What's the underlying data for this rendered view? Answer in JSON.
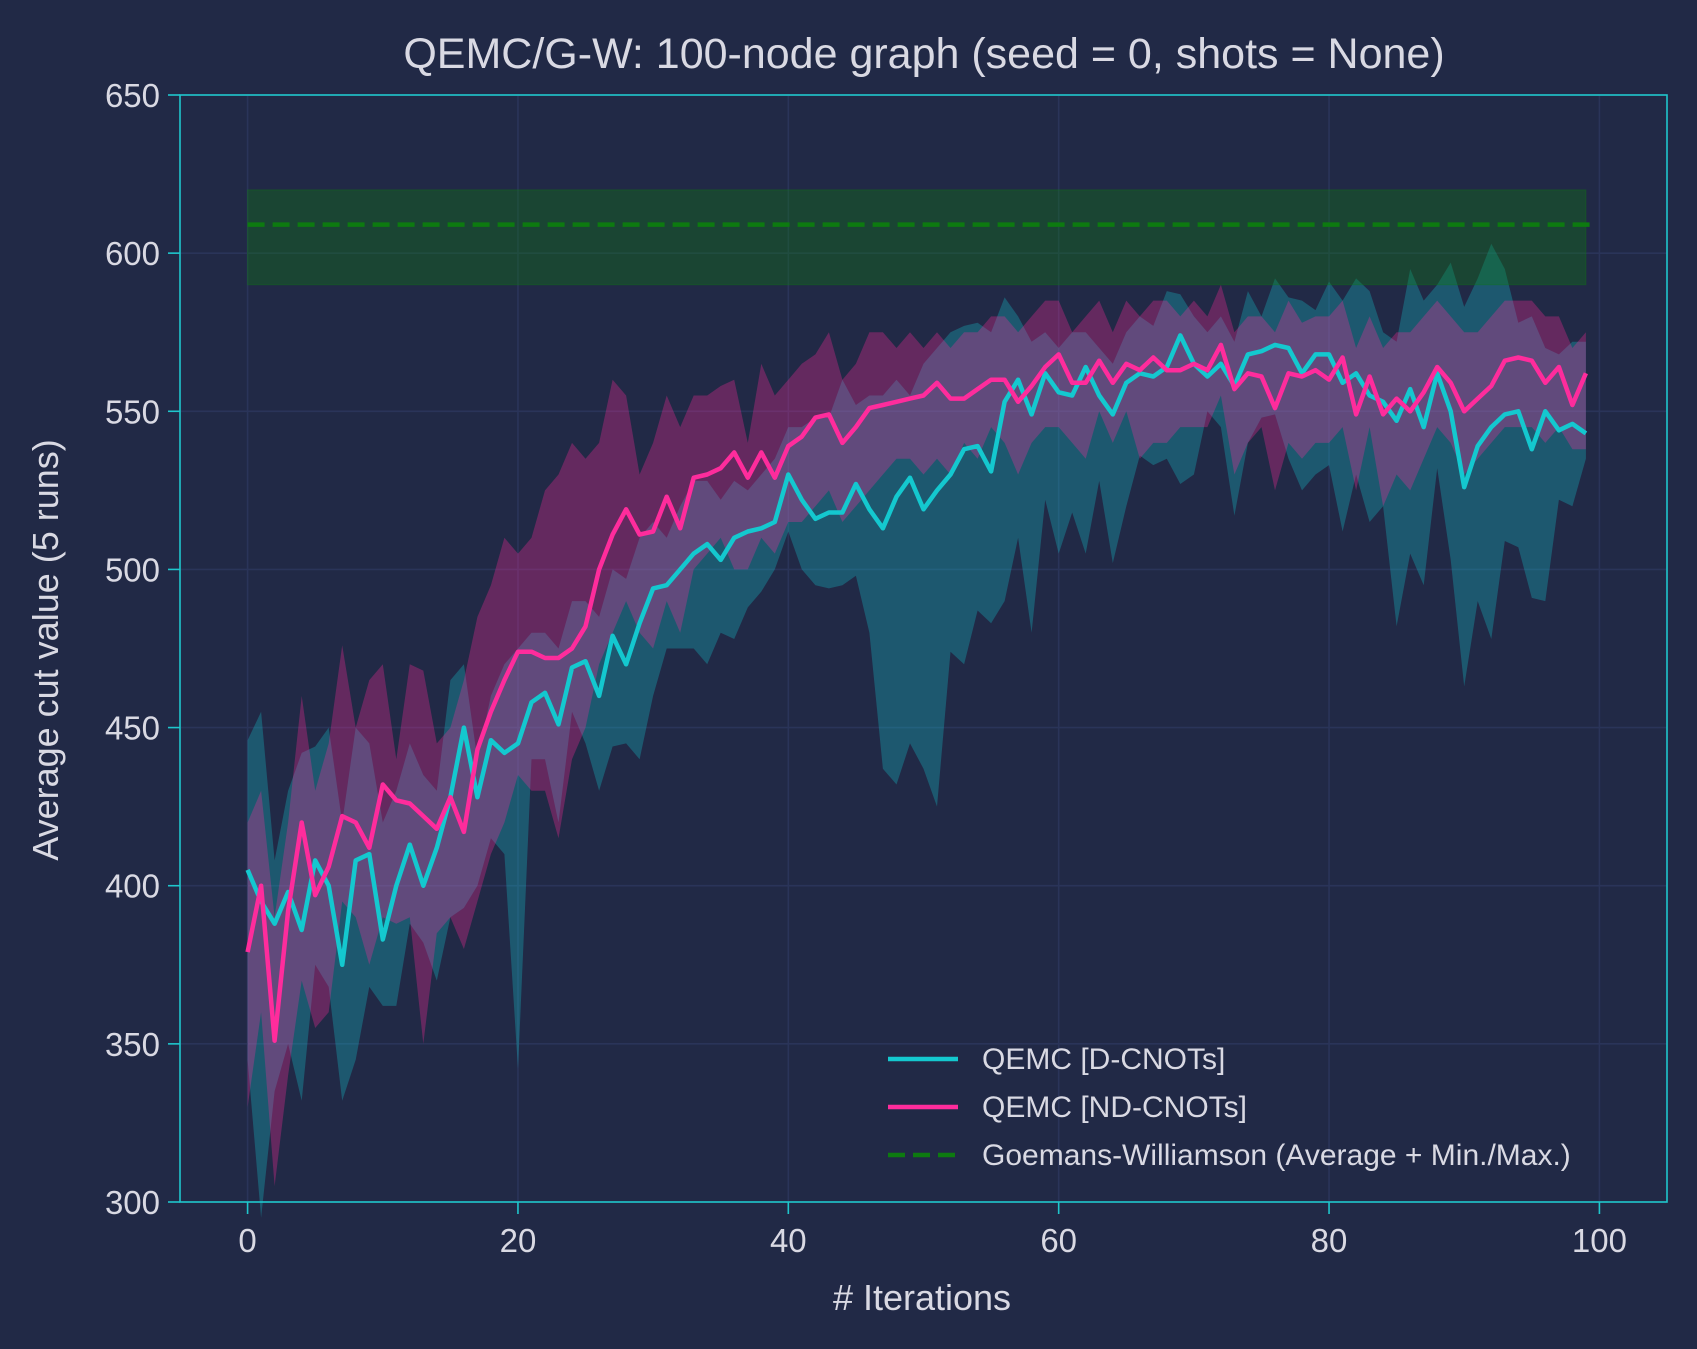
{
  "chart_data": {
    "type": "line",
    "title": "QEMC/G-W: 100-node graph (seed = 0, shots = None)",
    "xlabel": "# Iterations",
    "ylabel": "Average cut value (5 runs)",
    "xlim": [
      -5,
      105
    ],
    "ylim": [
      300,
      650
    ],
    "xticks": [
      0,
      20,
      40,
      60,
      80,
      100
    ],
    "yticks": [
      300,
      350,
      400,
      450,
      500,
      550,
      600,
      650
    ],
    "grid": true,
    "legend_position": "lower-right",
    "colors": {
      "background": "#212946",
      "grid": "#2A3459",
      "spine": "#1fc6cc",
      "d_cnots": "#14c8cf",
      "nd_cnots": "#fe2c9c",
      "gw": "#0d7a10"
    },
    "series": [
      {
        "name": "QEMC [D-CNOTs]",
        "style": "solid",
        "x": [
          0,
          1,
          2,
          3,
          4,
          5,
          6,
          7,
          8,
          9,
          10,
          11,
          12,
          13,
          14,
          15,
          16,
          17,
          18,
          19,
          20,
          21,
          22,
          23,
          24,
          25,
          26,
          27,
          28,
          29,
          30,
          31,
          32,
          33,
          34,
          35,
          36,
          37,
          38,
          39,
          40,
          41,
          42,
          43,
          44,
          45,
          46,
          47,
          48,
          49,
          50,
          51,
          52,
          53,
          54,
          55,
          56,
          57,
          58,
          59,
          60,
          61,
          62,
          63,
          64,
          65,
          66,
          67,
          68,
          69,
          70,
          71,
          72,
          73,
          74,
          75,
          76,
          77,
          78,
          79,
          80,
          81,
          82,
          83,
          84,
          85,
          86,
          87,
          88,
          89,
          90,
          91,
          92,
          93,
          94,
          95,
          96,
          97,
          98,
          99
        ],
        "mean": [
          405,
          395,
          388,
          398,
          386,
          408,
          400,
          375,
          408,
          410,
          383,
          400,
          413,
          400,
          412,
          428,
          450,
          428,
          446,
          442,
          445,
          458,
          461,
          451,
          469,
          471,
          460,
          479,
          470,
          483,
          494,
          495,
          500,
          505,
          508,
          503,
          510,
          512,
          513,
          515,
          530,
          522,
          516,
          518,
          518,
          527,
          519,
          513,
          523,
          529,
          519,
          525,
          530,
          538,
          539,
          531,
          553,
          560,
          549,
          562,
          556,
          555,
          564,
          555,
          549,
          559,
          562,
          561,
          564,
          574,
          565,
          561,
          565,
          558,
          568,
          569,
          571,
          570,
          562,
          568,
          568,
          559,
          562,
          555,
          553,
          547,
          557,
          545,
          562,
          550,
          526,
          539,
          545,
          549,
          550,
          538,
          550,
          544,
          546,
          543
        ],
        "min": [
          345,
          295,
          335,
          350,
          332,
          375,
          368,
          332,
          345,
          368,
          362,
          362,
          388,
          382,
          370,
          390,
          393,
          400,
          415,
          410,
          342,
          440,
          440,
          420,
          455,
          445,
          430,
          444,
          445,
          440,
          460,
          475,
          475,
          475,
          470,
          480,
          478,
          488,
          493,
          500,
          512,
          500,
          495,
          494,
          495,
          498,
          480,
          437,
          432,
          445,
          437,
          425,
          474,
          470,
          487,
          483,
          490,
          510,
          480,
          522,
          505,
          518,
          505,
          528,
          502,
          520,
          536,
          533,
          535,
          527,
          530,
          550,
          545,
          517,
          540,
          548,
          549,
          535,
          525,
          530,
          533,
          512,
          530,
          515,
          520,
          482,
          505,
          495,
          532,
          503,
          463,
          490,
          478,
          509,
          507,
          491,
          490,
          522,
          520,
          535
        ],
        "max": [
          446,
          455,
          408,
          430,
          442,
          444,
          450,
          420,
          450,
          445,
          420,
          430,
          445,
          435,
          430,
          465,
          470,
          440,
          460,
          470,
          475,
          480,
          480,
          475,
          490,
          490,
          485,
          500,
          497,
          510,
          515,
          510,
          520,
          528,
          528,
          522,
          528,
          525,
          530,
          535,
          545,
          545,
          548,
          548,
          560,
          552,
          555,
          555,
          560,
          555,
          565,
          570,
          575,
          577,
          578,
          575,
          586,
          580,
          572,
          575,
          570,
          575,
          575,
          570,
          565,
          575,
          580,
          577,
          588,
          587,
          580,
          575,
          580,
          572,
          588,
          580,
          592,
          586,
          585,
          582,
          591,
          585,
          592,
          588,
          575,
          572,
          595,
          585,
          590,
          597,
          583,
          592,
          603,
          595,
          578,
          580,
          570,
          568,
          572,
          572
        ]
      },
      {
        "name": "QEMC [ND-CNOTs]",
        "style": "solid",
        "x": [
          0,
          1,
          2,
          3,
          4,
          5,
          6,
          7,
          8,
          9,
          10,
          11,
          12,
          13,
          14,
          15,
          16,
          17,
          18,
          19,
          20,
          21,
          22,
          23,
          24,
          25,
          26,
          27,
          28,
          29,
          30,
          31,
          32,
          33,
          34,
          35,
          36,
          37,
          38,
          39,
          40,
          41,
          42,
          43,
          44,
          45,
          46,
          47,
          48,
          49,
          50,
          51,
          52,
          53,
          54,
          55,
          56,
          57,
          58,
          59,
          60,
          61,
          62,
          63,
          64,
          65,
          66,
          67,
          68,
          69,
          70,
          71,
          72,
          73,
          74,
          75,
          76,
          77,
          78,
          79,
          80,
          81,
          82,
          83,
          84,
          85,
          86,
          87,
          88,
          89,
          90,
          91,
          92,
          93,
          94,
          95,
          96,
          97,
          98,
          99
        ],
        "mean": [
          379,
          400,
          351,
          392,
          420,
          397,
          406,
          422,
          420,
          412,
          432,
          427,
          426,
          422,
          418,
          428,
          417,
          443,
          455,
          465,
          474,
          474,
          472,
          472,
          475,
          482,
          500,
          511,
          519,
          511,
          512,
          523,
          513,
          529,
          530,
          532,
          537,
          529,
          537,
          529,
          539,
          542,
          548,
          549,
          540,
          545,
          551,
          552,
          553,
          554,
          555,
          559,
          554,
          554,
          557,
          560,
          560,
          553,
          558,
          564,
          568,
          559,
          559,
          566,
          559,
          565,
          563,
          567,
          563,
          563,
          565,
          563,
          571,
          557,
          562,
          561,
          551,
          562,
          561,
          563,
          560,
          567,
          549,
          561,
          549,
          554,
          550,
          556,
          564,
          559,
          550,
          554,
          558,
          566,
          567,
          566,
          559,
          564,
          552,
          562
        ],
        "min": [
          330,
          360,
          305,
          340,
          370,
          355,
          360,
          395,
          390,
          375,
          390,
          388,
          390,
          350,
          385,
          390,
          380,
          395,
          410,
          420,
          435,
          430,
          430,
          415,
          440,
          450,
          470,
          480,
          490,
          480,
          475,
          490,
          480,
          500,
          505,
          510,
          500,
          500,
          510,
          505,
          515,
          515,
          520,
          525,
          515,
          520,
          525,
          530,
          535,
          535,
          530,
          535,
          530,
          540,
          535,
          545,
          540,
          530,
          540,
          545,
          545,
          540,
          535,
          550,
          540,
          550,
          535,
          540,
          540,
          545,
          545,
          545,
          555,
          530,
          540,
          545,
          525,
          540,
          535,
          540,
          540,
          545,
          525,
          545,
          520,
          530,
          525,
          535,
          545,
          540,
          530,
          535,
          540,
          545,
          545,
          545,
          540,
          545,
          538,
          538
        ],
        "max": [
          420,
          430,
          390,
          420,
          460,
          430,
          445,
          476,
          450,
          465,
          470,
          440,
          470,
          468,
          445,
          450,
          465,
          485,
          495,
          510,
          505,
          510,
          525,
          530,
          540,
          535,
          540,
          560,
          555,
          530,
          540,
          555,
          545,
          555,
          555,
          558,
          560,
          540,
          565,
          555,
          560,
          565,
          568,
          575,
          560,
          565,
          575,
          575,
          570,
          575,
          570,
          575,
          570,
          575,
          575,
          580,
          580,
          575,
          580,
          585,
          585,
          575,
          580,
          585,
          575,
          585,
          580,
          585,
          585,
          580,
          585,
          580,
          590,
          575,
          580,
          580,
          575,
          585,
          578,
          580,
          580,
          585,
          570,
          580,
          570,
          575,
          575,
          580,
          585,
          580,
          575,
          575,
          580,
          585,
          585,
          585,
          580,
          580,
          570,
          575
        ]
      },
      {
        "name": "Goemans-Williamson (Average + Min./Max.)",
        "style": "dashed",
        "x_range": [
          0,
          99
        ],
        "mean": 609,
        "min": 590,
        "max": 620
      }
    ]
  }
}
